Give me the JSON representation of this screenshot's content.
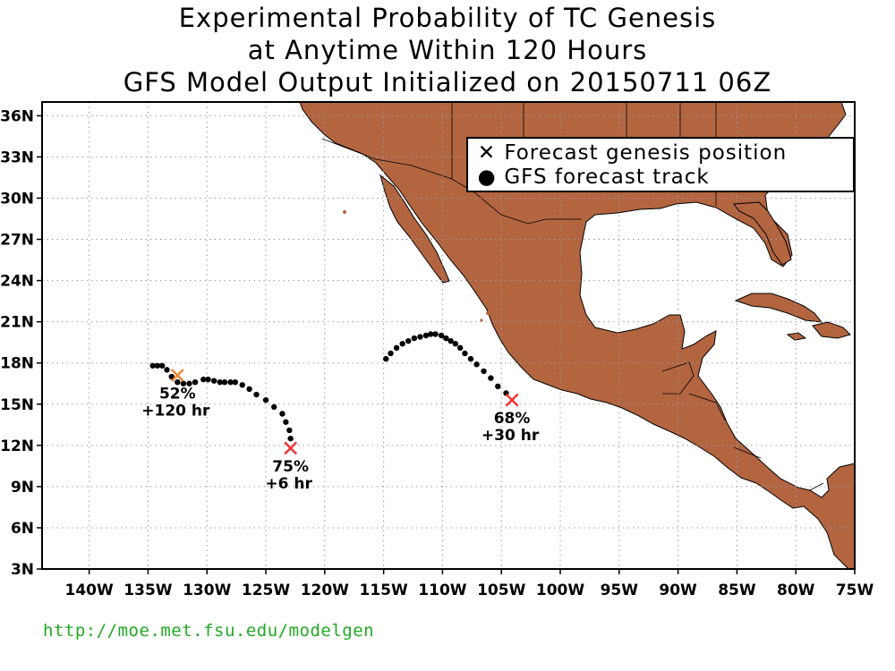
{
  "title": {
    "line1": "Experimental Probability of TC Genesis",
    "line2": "at Anytime Within 120 Hours",
    "line3": "GFS Model Output Initialized on 20150711 06Z"
  },
  "map": {
    "lon_range": [
      -144,
      -75
    ],
    "lat_range": [
      3,
      37
    ],
    "land_color": "#b36540",
    "grid": "dotted",
    "lon_ticks": [
      "140W",
      "135W",
      "130W",
      "125W",
      "120W",
      "115W",
      "110W",
      "105W",
      "100W",
      "95W",
      "90W",
      "85W",
      "80W",
      "75W"
    ],
    "lat_ticks": [
      "3N",
      "6N",
      "9N",
      "12N",
      "15N",
      "18N",
      "21N",
      "24N",
      "27N",
      "30N",
      "33N",
      "36N"
    ]
  },
  "legend": {
    "genesis_label": "Forecast genesis position",
    "track_label": "GFS forecast track"
  },
  "genesis_points": [
    {
      "lon": -122.9,
      "lat": 11.8,
      "color": "#ee3333",
      "prob": "75%",
      "time": "+6 hr"
    },
    {
      "lon": -132.5,
      "lat": 17.1,
      "color": "#ee8833",
      "prob": "52%",
      "time": "+120 hr"
    },
    {
      "lon": -104.1,
      "lat": 15.3,
      "color": "#ee3333",
      "prob": "68%",
      "time": "+30 hr"
    }
  ],
  "tracks": [
    {
      "points": [
        [
          -122.9,
          12.5
        ],
        [
          -123.0,
          13.1
        ],
        [
          -123.3,
          13.7
        ],
        [
          -123.6,
          14.3
        ],
        [
          -124.3,
          14.8
        ],
        [
          -125.0,
          15.3
        ],
        [
          -125.8,
          15.7
        ],
        [
          -126.4,
          16.1
        ],
        [
          -127.0,
          16.4
        ],
        [
          -127.6,
          16.6
        ],
        [
          -128.0,
          16.6
        ],
        [
          -128.5,
          16.6
        ],
        [
          -128.9,
          16.6
        ],
        [
          -129.4,
          16.7
        ],
        [
          -129.9,
          16.8
        ],
        [
          -130.3,
          16.8
        ],
        [
          -131.0,
          16.6
        ],
        [
          -131.5,
          16.5
        ],
        [
          -132.0,
          16.5
        ],
        [
          -132.5,
          16.6
        ],
        [
          -133.0,
          17.0
        ],
        [
          -133.4,
          17.5
        ],
        [
          -133.8,
          17.8
        ],
        [
          -134.2,
          17.8
        ],
        [
          -134.6,
          17.8
        ]
      ]
    },
    {
      "points": [
        [
          -104.6,
          15.8
        ],
        [
          -105.3,
          16.3
        ],
        [
          -105.9,
          16.9
        ],
        [
          -106.5,
          17.4
        ],
        [
          -107.1,
          17.9
        ],
        [
          -107.6,
          18.3
        ],
        [
          -108.1,
          18.7
        ],
        [
          -108.5,
          19.1
        ],
        [
          -108.9,
          19.4
        ],
        [
          -109.3,
          19.6
        ],
        [
          -109.7,
          19.8
        ],
        [
          -110.1,
          20.0
        ],
        [
          -110.6,
          20.1
        ],
        [
          -111.0,
          20.1
        ],
        [
          -111.4,
          20.0
        ],
        [
          -111.9,
          19.9
        ],
        [
          -112.4,
          19.8
        ],
        [
          -112.9,
          19.6
        ],
        [
          -113.4,
          19.4
        ],
        [
          -113.9,
          19.1
        ],
        [
          -114.4,
          18.7
        ],
        [
          -114.8,
          18.3
        ]
      ]
    }
  ],
  "url": "http://moe.met.fsu.edu/modelgen"
}
